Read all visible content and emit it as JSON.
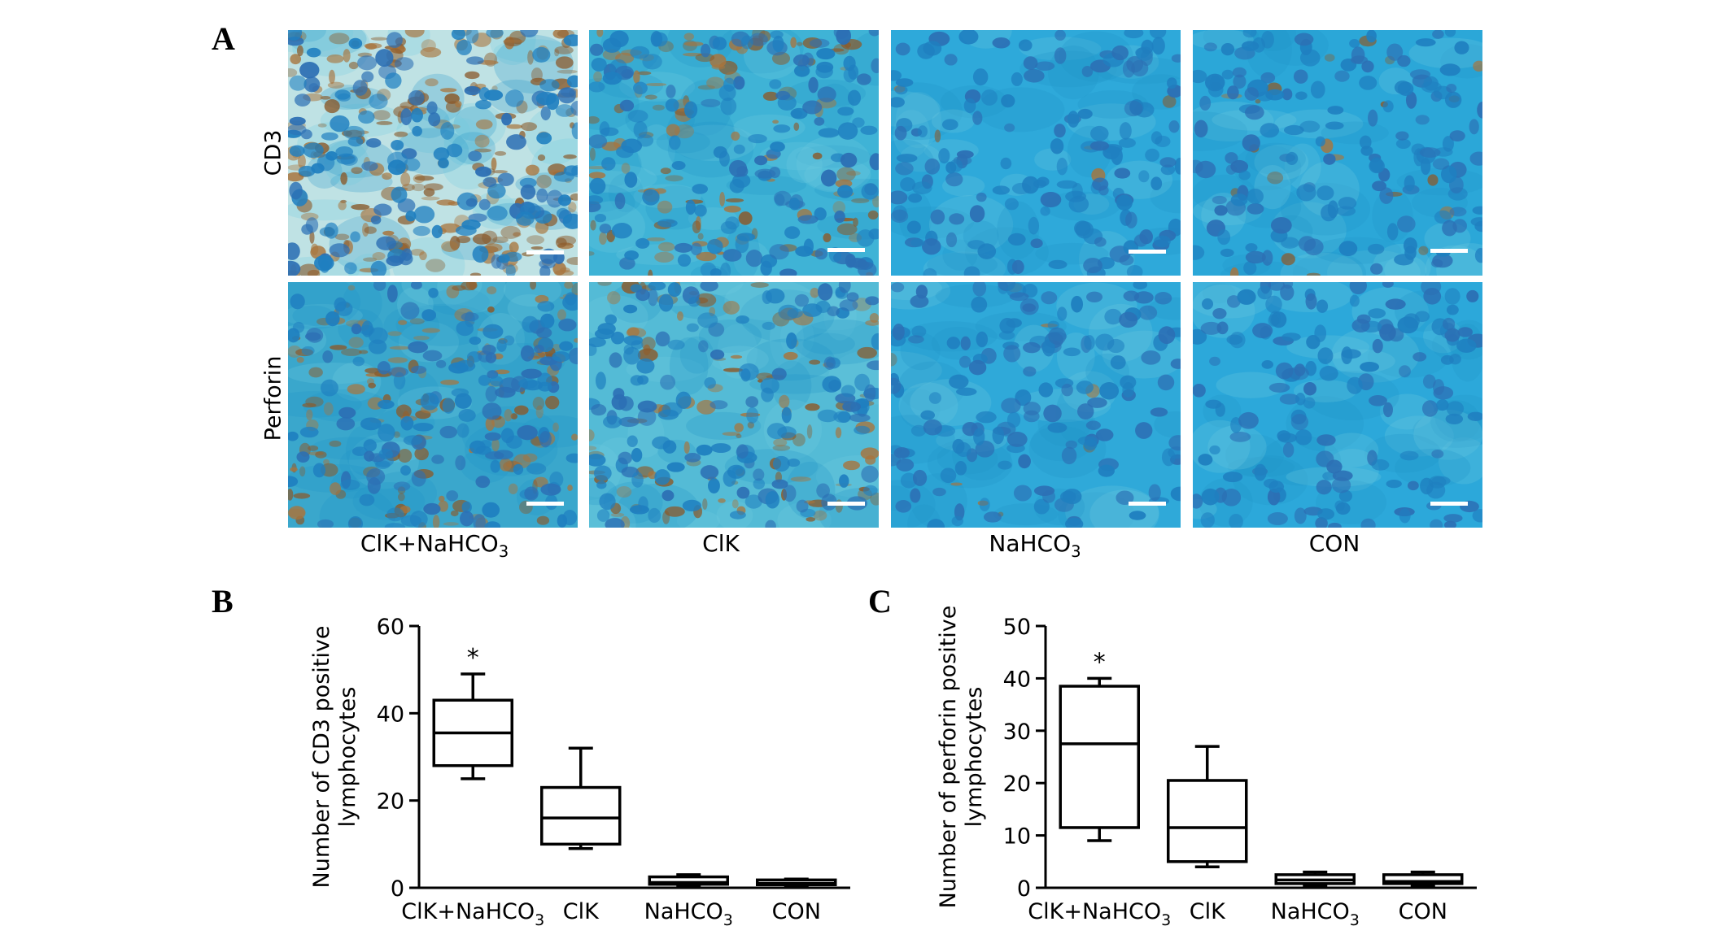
{
  "figure": {
    "panel_A": {
      "letter": "A",
      "rows": [
        "CD3",
        "Perforin"
      ],
      "columns": [
        {
          "label": "ClK+NaHCO",
          "sub": "3"
        },
        {
          "label": "ClK",
          "sub": ""
        },
        {
          "label": "NaHCO",
          "sub": "3"
        },
        {
          "label": "CON",
          "sub": ""
        }
      ]
    },
    "panel_B": {
      "letter": "B"
    },
    "panel_C": {
      "letter": "C"
    }
  },
  "chart_data": [
    {
      "type": "box",
      "panel": "B",
      "ylabel_lines": [
        "Number of CD3 positive",
        "lymphocytes"
      ],
      "ylim": [
        0,
        60
      ],
      "yticks": [
        0,
        20,
        40,
        60
      ],
      "categories": [
        {
          "label": "ClK+NaHCO",
          "sub": "3"
        },
        {
          "label": "ClK",
          "sub": ""
        },
        {
          "label": "NaHCO",
          "sub": "3"
        },
        {
          "label": "CON",
          "sub": ""
        }
      ],
      "boxes": [
        {
          "min": 25,
          "q1": 28,
          "median": 35.5,
          "q3": 43,
          "max": 49
        },
        {
          "min": 9,
          "q1": 10,
          "median": 16,
          "q3": 23,
          "max": 32
        },
        {
          "min": 0.5,
          "q1": 0.8,
          "median": 1.2,
          "q3": 2.5,
          "max": 3
        },
        {
          "min": 0.5,
          "q1": 0.7,
          "median": 1,
          "q3": 1.8,
          "max": 2
        }
      ],
      "significance": [
        "*",
        "",
        "",
        ""
      ]
    },
    {
      "type": "box",
      "panel": "C",
      "ylabel_lines": [
        "Number of perforin positive",
        "lymphocytes"
      ],
      "ylim": [
        0,
        50
      ],
      "yticks": [
        0,
        10,
        20,
        30,
        40,
        50
      ],
      "categories": [
        {
          "label": "ClK+NaHCO",
          "sub": "3"
        },
        {
          "label": "ClK",
          "sub": ""
        },
        {
          "label": "NaHCO",
          "sub": "3"
        },
        {
          "label": "CON",
          "sub": ""
        }
      ],
      "boxes": [
        {
          "min": 9,
          "q1": 11.5,
          "median": 27.5,
          "q3": 38.5,
          "max": 40
        },
        {
          "min": 4,
          "q1": 5,
          "median": 11.5,
          "q3": 20.5,
          "max": 27
        },
        {
          "min": 0.5,
          "q1": 0.8,
          "median": 1.5,
          "q3": 2.5,
          "max": 3
        },
        {
          "min": 0.5,
          "q1": 0.8,
          "median": 1.2,
          "q3": 2.5,
          "max": 3
        }
      ],
      "significance": [
        "*",
        "",
        "",
        ""
      ]
    }
  ]
}
